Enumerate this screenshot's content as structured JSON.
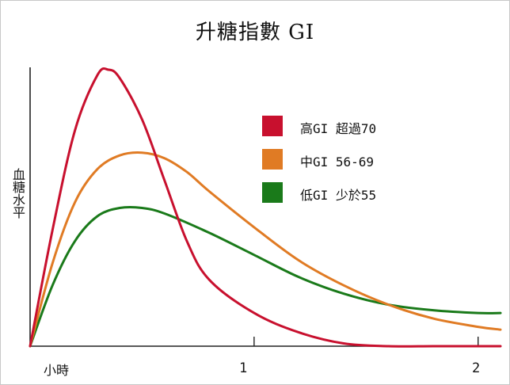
{
  "chart_data": {
    "type": "line",
    "title": "升糖指數 GI",
    "ylabel": "血糖水平",
    "xlabel": "小時",
    "xlim": [
      0,
      2.1
    ],
    "ylim": [
      0,
      100
    ],
    "xticks": [
      1,
      2
    ],
    "xtick_labels": [
      "1",
      "2"
    ],
    "grid": false,
    "legend_position": "upper-right",
    "series": [
      {
        "name": "高GI 超過70",
        "color": "#c8102e",
        "x": [
          0,
          0.1,
          0.2,
          0.3,
          0.35,
          0.4,
          0.5,
          0.6,
          0.7,
          0.8,
          1.0,
          1.2,
          1.4,
          1.6,
          1.8,
          2.0,
          2.1
        ],
        "y": [
          0,
          42,
          78,
          98,
          100,
          97,
          82,
          60,
          38,
          24,
          12,
          5,
          1,
          0,
          0,
          0,
          0
        ]
      },
      {
        "name": "中GI 56-69",
        "color": "#e07b24",
        "x": [
          0,
          0.1,
          0.2,
          0.3,
          0.4,
          0.5,
          0.6,
          0.7,
          0.8,
          1.0,
          1.2,
          1.4,
          1.6,
          1.8,
          2.0,
          2.1
        ],
        "y": [
          0,
          30,
          52,
          64,
          69,
          70,
          68,
          63,
          56,
          43,
          31,
          22,
          15,
          10,
          7,
          6
        ]
      },
      {
        "name": "低GI 少於55",
        "color": "#1a7a1a",
        "x": [
          0,
          0.1,
          0.2,
          0.3,
          0.4,
          0.5,
          0.6,
          0.8,
          1.0,
          1.2,
          1.4,
          1.6,
          1.8,
          2.0,
          2.1
        ],
        "y": [
          0,
          22,
          38,
          47,
          50,
          50,
          48,
          41,
          33,
          25,
          19,
          15,
          13,
          12,
          12
        ]
      }
    ]
  }
}
